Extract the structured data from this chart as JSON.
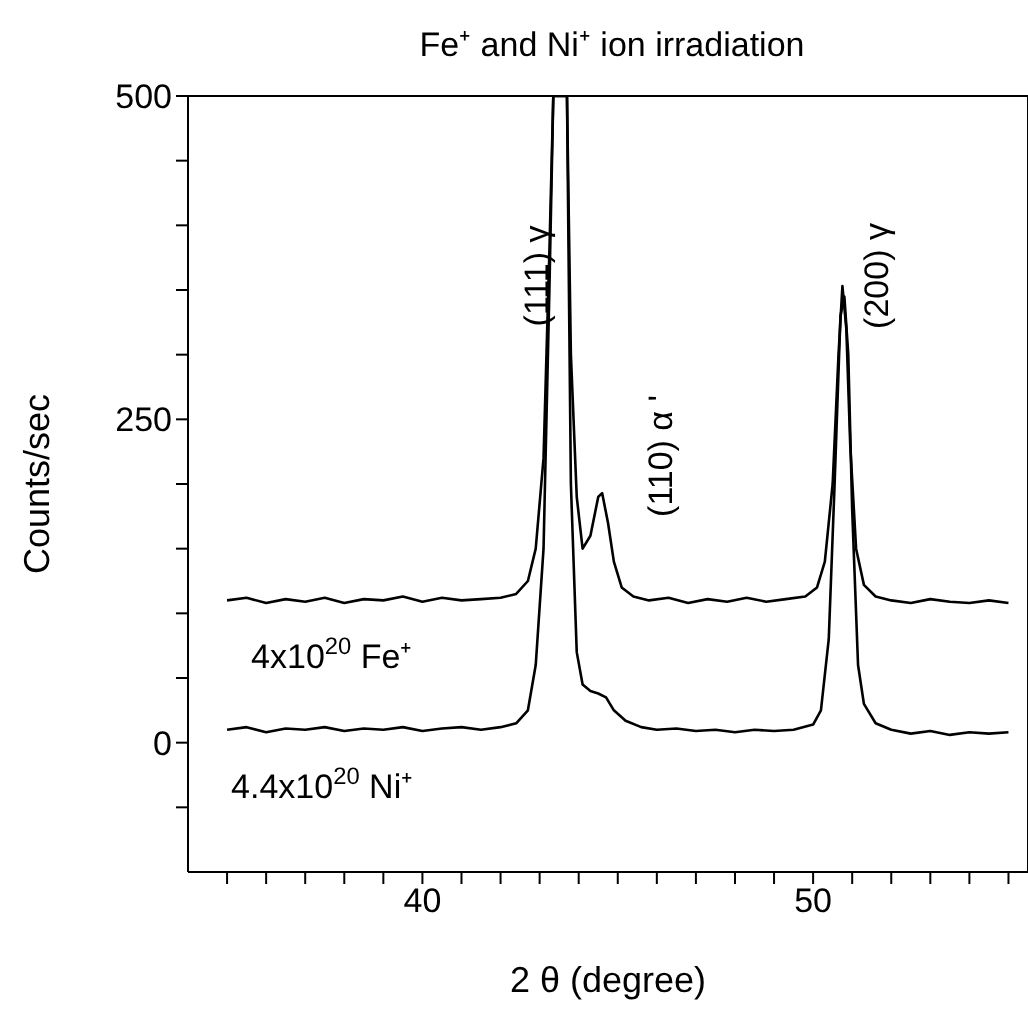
{
  "chart_data": {
    "type": "line",
    "title": "Fe⁺ and Ni⁺ ion irradiation",
    "xlabel": "2 θ (degree)",
    "ylabel": "Counts/sec",
    "xlim": [
      34,
      55.5
    ],
    "ylim": [
      -100,
      500
    ],
    "xticks": [
      {
        "value": 35,
        "label": null
      },
      {
        "value": 36,
        "label": null
      },
      {
        "value": 37,
        "label": null
      },
      {
        "value": 38,
        "label": null
      },
      {
        "value": 39,
        "label": null
      },
      40,
      {
        "value": 41,
        "label": null
      },
      {
        "value": 42,
        "label": null
      },
      {
        "value": 43,
        "label": null
      },
      {
        "value": 44,
        "label": null
      },
      {
        "value": 45,
        "label": null
      },
      {
        "value": 46,
        "label": null
      },
      {
        "value": 47,
        "label": null
      },
      {
        "value": 48,
        "label": null
      },
      {
        "value": 49,
        "label": null
      },
      50,
      {
        "value": 51,
        "label": null
      },
      {
        "value": 52,
        "label": null
      },
      {
        "value": 53,
        "label": null
      },
      {
        "value": 54,
        "label": null
      },
      {
        "value": 55,
        "label": null
      }
    ],
    "yticks": [
      {
        "value": -50,
        "label": null
      },
      0,
      {
        "value": 50,
        "label": null
      },
      {
        "value": 100,
        "label": null
      },
      {
        "value": 150,
        "label": null
      },
      {
        "value": 200,
        "label": null
      },
      250,
      {
        "value": 300,
        "label": null
      },
      {
        "value": 350,
        "label": null
      },
      {
        "value": 400,
        "label": null
      },
      {
        "value": 450,
        "label": null
      },
      500
    ],
    "legend": false,
    "marker": "none",
    "line_style": "solid",
    "series": [
      {
        "name": "4x10$^{20}$ Fe⁺",
        "color": "#000000",
        "x": [
          35,
          35.5,
          36,
          36.5,
          37,
          37.5,
          38,
          38.5,
          39,
          39.5,
          40,
          40.5,
          41,
          41.5,
          42,
          42.4,
          42.7,
          42.9,
          43.1,
          43.25,
          43.35,
          43.7,
          43.8,
          43.95,
          44.1,
          44.3,
          44.5,
          44.6,
          44.75,
          44.9,
          45.1,
          45.4,
          45.8,
          46.3,
          46.8,
          47.3,
          47.8,
          48.3,
          48.8,
          49.3,
          49.8,
          50.1,
          50.3,
          50.5,
          50.65,
          50.75,
          50.85,
          50.95,
          51.1,
          51.3,
          51.6,
          52,
          52.5,
          53,
          53.5,
          54,
          54.5,
          55
        ],
        "values": [
          110,
          112,
          108,
          111,
          109,
          112,
          108,
          111,
          110,
          113,
          109,
          112,
          110,
          111,
          112,
          115,
          125,
          150,
          220,
          380,
          500,
          500,
          300,
          190,
          150,
          160,
          190,
          193,
          170,
          140,
          120,
          113,
          110,
          112,
          108,
          111,
          109,
          112,
          109,
          111,
          113,
          120,
          140,
          200,
          300,
          353,
          320,
          230,
          150,
          122,
          113,
          110,
          108,
          111,
          109,
          108,
          110,
          108
        ]
      },
      {
        "name": "4.4x10$^{20}$ Ni⁺",
        "color": "#000000",
        "x": [
          35,
          35.5,
          36,
          36.5,
          37,
          37.5,
          38,
          38.5,
          39,
          39.5,
          40,
          40.5,
          41,
          41.5,
          42,
          42.4,
          42.7,
          42.9,
          43.1,
          43.25,
          43.35,
          43.7,
          43.8,
          43.95,
          44.1,
          44.3,
          44.5,
          44.7,
          44.9,
          45.2,
          45.6,
          46,
          46.5,
          47,
          47.5,
          48,
          48.5,
          49,
          49.5,
          50,
          50.2,
          50.4,
          50.55,
          50.7,
          50.8,
          50.9,
          51,
          51.15,
          51.3,
          51.6,
          52,
          52.5,
          53,
          53.5,
          54,
          54.5,
          55
        ],
        "values": [
          10,
          12,
          8,
          11,
          10,
          12,
          9,
          11,
          10,
          12,
          9,
          11,
          12,
          10,
          12,
          15,
          25,
          60,
          150,
          350,
          500,
          500,
          200,
          70,
          45,
          40,
          38,
          35,
          25,
          17,
          12,
          10,
          11,
          9,
          10,
          8,
          10,
          9,
          10,
          14,
          25,
          80,
          200,
          330,
          345,
          300,
          180,
          60,
          30,
          15,
          10,
          7,
          9,
          6,
          8,
          7,
          8
        ]
      }
    ],
    "annotations": [
      "(111) γ",
      "(110) α '",
      "(200) γ"
    ]
  }
}
